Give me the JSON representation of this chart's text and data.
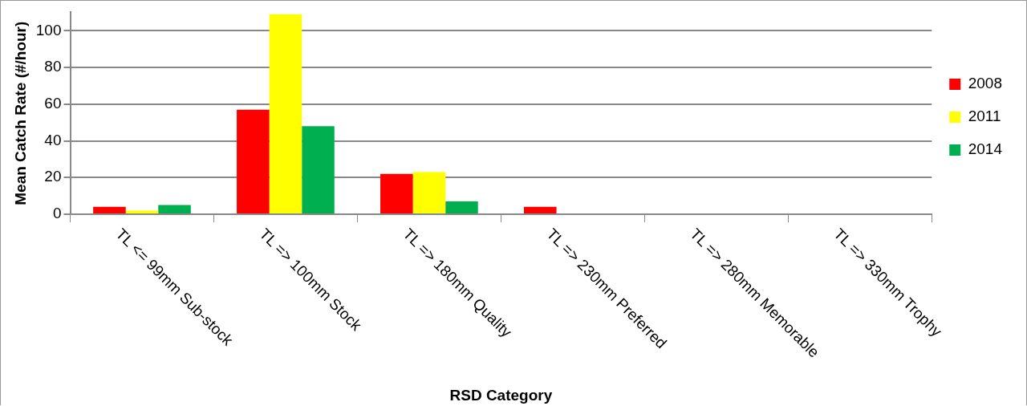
{
  "chart_data": {
    "type": "bar",
    "xlabel": "RSD Category",
    "ylabel": "Mean Catch Rate (#/hour)",
    "categories": [
      "TL <= 99mm Sub-stock",
      "TL => 100mm Stock",
      "TL => 180mm Quality",
      "TL => 230mm Preferred",
      "TL => 280mm Memorable",
      "TL => 330mm Trophy"
    ],
    "series": [
      {
        "name": "2008",
        "color": "#ff0000",
        "values": [
          4,
          57,
          22,
          4,
          0,
          0
        ]
      },
      {
        "name": "2011",
        "color": "#ffff00",
        "values": [
          2,
          109,
          23,
          0,
          0,
          0
        ]
      },
      {
        "name": "2014",
        "color": "#00b050",
        "values": [
          5,
          48,
          7,
          0,
          0,
          0
        ]
      }
    ],
    "ylim": [
      0,
      110
    ],
    "yticks": [
      0,
      20,
      40,
      60,
      80,
      100
    ],
    "grid": "y",
    "legend": "right"
  }
}
